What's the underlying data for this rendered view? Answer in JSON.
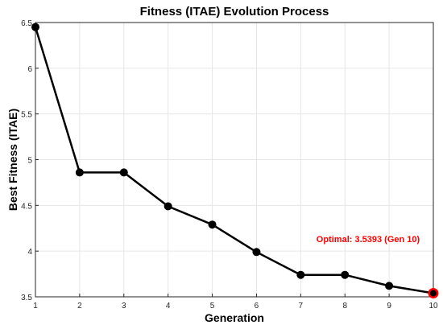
{
  "chart_data": {
    "type": "line",
    "title": "Fitness (ITAE) Evolution Process",
    "xlabel": "Generation",
    "ylabel": "Best Fitness (ITAE)",
    "x": [
      1,
      2,
      3,
      4,
      5,
      6,
      7,
      8,
      9,
      10
    ],
    "y": [
      6.45,
      4.86,
      4.86,
      4.49,
      4.29,
      3.99,
      3.74,
      3.74,
      3.62,
      3.5393
    ],
    "xlim": [
      1,
      10
    ],
    "ylim": [
      3.5,
      6.5
    ],
    "xticks": [
      "1",
      "2",
      "3",
      "4",
      "5",
      "6",
      "7",
      "8",
      "9",
      "10"
    ],
    "yticks": [
      "3.5",
      "4",
      "4.5",
      "5",
      "5.5",
      "6",
      "6.5"
    ],
    "grid": true,
    "line_color": "#000000",
    "marker": "filled-circle",
    "highlight": {
      "x": 10,
      "y": 3.5393,
      "color": "#ff0000",
      "label": "Optimal: 3.5393 (Gen 10)"
    }
  }
}
